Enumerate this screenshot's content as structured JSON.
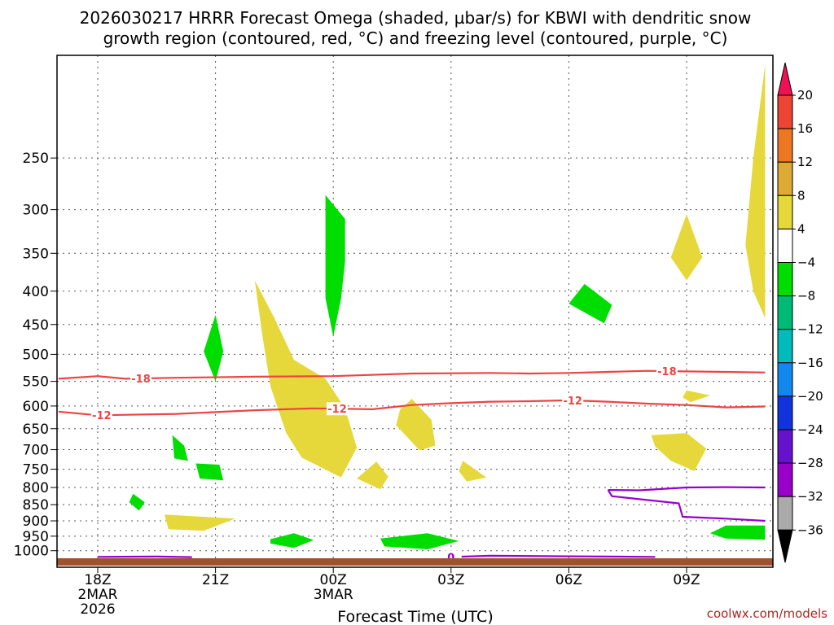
{
  "title_line1": "2026030217 HRRR Forecast Omega (shaded, µbar/s) for KBWI with dendritic snow",
  "title_line2": "growth region (contoured, red, °C) and freezing level (contoured, purple, °C)",
  "xlabel": "Forecast Time (UTC)",
  "credit": "coolwx.com/models",
  "colors": {
    "green": "#00dd00",
    "yellow": "#e6d83a",
    "red_contour": "#ee4444",
    "purple_contour": "#9900cc",
    "ground": "#a0522d"
  },
  "colorbar": {
    "labels": [
      "20",
      "16",
      "12",
      "8",
      "4",
      "−4",
      "−8",
      "−12",
      "−16",
      "−20",
      "−24",
      "−28",
      "−32",
      "−36"
    ],
    "colors": [
      "#ee1155",
      "#ee4433",
      "#ee7722",
      "#ddaa33",
      "#e6d83a",
      "#ffffff",
      "#00dd00",
      "#00bb77",
      "#00bbbb",
      "#1188ee",
      "#1133dd",
      "#6611cc",
      "#9900cc",
      "#aaaaaa"
    ]
  },
  "chart_data": {
    "type": "time-height cross section",
    "x_ticks": [
      {
        "label": "18Z",
        "sub": "2MAR",
        "sub2": "2026",
        "hour": 0
      },
      {
        "label": "21Z",
        "sub": "",
        "sub2": "",
        "hour": 3
      },
      {
        "label": "00Z",
        "sub": "3MAR",
        "sub2": "",
        "hour": 6
      },
      {
        "label": "03Z",
        "sub": "",
        "sub2": "",
        "hour": 9
      },
      {
        "label": "06Z",
        "sub": "",
        "sub2": "",
        "hour": 12
      },
      {
        "label": "09Z",
        "sub": "",
        "sub2": "",
        "hour": 15
      }
    ],
    "x_range_hours": [
      -1,
      17
    ],
    "y_ticks": [
      "250",
      "300",
      "350",
      "400",
      "450",
      "500",
      "550",
      "600",
      "650",
      "700",
      "750",
      "800",
      "850",
      "900",
      "950",
      "1000"
    ],
    "y_range_hpa": [
      175,
      1030
    ],
    "grid": true,
    "log_pressure_axis": true,
    "contours": [
      {
        "label": "-18",
        "color": "red",
        "points": [
          [
            -1,
            545
          ],
          [
            0,
            540
          ],
          [
            0.7,
            545
          ],
          [
            2,
            543
          ],
          [
            4,
            541
          ],
          [
            6,
            540
          ],
          [
            8,
            535
          ],
          [
            10,
            534
          ],
          [
            11,
            535
          ],
          [
            12,
            534
          ],
          [
            13,
            532
          ],
          [
            14,
            530
          ],
          [
            15,
            531
          ],
          [
            16,
            532
          ],
          [
            17,
            533
          ]
        ],
        "label_hours": [
          1.1,
          14.5
        ]
      },
      {
        "label": "-12",
        "color": "red",
        "points": [
          [
            -1,
            612
          ],
          [
            0,
            620
          ],
          [
            2,
            617
          ],
          [
            4,
            609
          ],
          [
            5.5,
            605
          ],
          [
            7,
            607
          ],
          [
            8,
            598
          ],
          [
            9,
            594
          ],
          [
            10,
            591
          ],
          [
            11,
            590
          ],
          [
            12,
            588
          ],
          [
            13,
            591
          ],
          [
            14,
            595
          ],
          [
            15,
            598
          ],
          [
            16,
            603
          ],
          [
            17,
            601
          ]
        ],
        "label_hours": [
          0.1,
          6.1,
          12.1
        ]
      },
      {
        "label": "0",
        "color": "purple",
        "points": [
          [
            13,
            807
          ],
          [
            13.8,
            808
          ],
          [
            15,
            800
          ],
          [
            16,
            799
          ],
          [
            17,
            800
          ]
        ],
        "label_hours": []
      },
      {
        "label": "0",
        "color": "purple",
        "points": [
          [
            13,
            807
          ],
          [
            13.1,
            825
          ],
          [
            14.8,
            846
          ],
          [
            14.9,
            887
          ],
          [
            16,
            893
          ],
          [
            17,
            900
          ]
        ],
        "label_hours": []
      },
      {
        "label": "0",
        "color": "purple",
        "points": [
          [
            0,
            1022
          ],
          [
            1.5,
            1021
          ],
          [
            2.4,
            1023
          ]
        ],
        "label_hours": []
      },
      {
        "label": "0",
        "color": "purple",
        "points": [
          [
            8.9,
            1023
          ],
          [
            10,
            1018
          ],
          [
            12,
            1020
          ],
          [
            14.2,
            1022
          ]
        ],
        "label_hours": [
          9
        ]
      }
    ],
    "omega_regions": [
      {
        "sign": "negative",
        "range": "-4 to -8",
        "points": [
          [
            5.8,
            285
          ],
          [
            6.3,
            310
          ],
          [
            6.3,
            360
          ],
          [
            6.2,
            410
          ],
          [
            6,
            470
          ],
          [
            5.8,
            410
          ],
          [
            5.8,
            360
          ],
          [
            5.8,
            310
          ]
        ]
      },
      {
        "sign": "negative",
        "range": "-4 to -8",
        "points": [
          [
            3,
            435
          ],
          [
            3.2,
            495
          ],
          [
            3,
            550
          ],
          [
            2.7,
            495
          ]
        ]
      },
      {
        "sign": "negative",
        "range": "-4 to -8",
        "points": [
          [
            12.4,
            390
          ],
          [
            13.1,
            420
          ],
          [
            12.9,
            448
          ],
          [
            12,
            418
          ]
        ]
      },
      {
        "sign": "negative",
        "range": "-4 to -8",
        "points": [
          [
            1.9,
            665
          ],
          [
            2.2,
            690
          ],
          [
            2.3,
            728
          ],
          [
            1.95,
            722
          ]
        ]
      },
      {
        "sign": "negative",
        "range": "-4 to -8",
        "points": [
          [
            2.5,
            735
          ],
          [
            3.1,
            738
          ],
          [
            3.2,
            780
          ],
          [
            2.6,
            775
          ]
        ]
      },
      {
        "sign": "negative",
        "range": "-4 to -8",
        "points": [
          [
            0.9,
            818
          ],
          [
            1.2,
            843
          ],
          [
            1.05,
            868
          ],
          [
            0.8,
            843
          ]
        ]
      },
      {
        "sign": "negative",
        "range": "-4 to -8",
        "points": [
          [
            4.4,
            960
          ],
          [
            5,
            940
          ],
          [
            5.5,
            963
          ],
          [
            5,
            990
          ],
          [
            4.4,
            975
          ]
        ]
      },
      {
        "sign": "negative",
        "range": "-4 to -8",
        "points": [
          [
            7.2,
            958
          ],
          [
            8.4,
            940
          ],
          [
            9.2,
            966
          ],
          [
            8.4,
            995
          ],
          [
            7.3,
            985
          ]
        ]
      },
      {
        "sign": "negative",
        "range": "-4 to -8",
        "points": [
          [
            16,
            915
          ],
          [
            17,
            915
          ],
          [
            17,
            962
          ],
          [
            16,
            958
          ],
          [
            15.6,
            940
          ]
        ]
      },
      {
        "sign": "positive",
        "range": "4 to 8",
        "points": [
          [
            4,
            385
          ],
          [
            4.5,
            440
          ],
          [
            5,
            510
          ],
          [
            5.8,
            545
          ],
          [
            6.3,
            605
          ],
          [
            6.6,
            695
          ],
          [
            6.2,
            772
          ],
          [
            5.2,
            720
          ],
          [
            4.8,
            660
          ],
          [
            4.4,
            560
          ],
          [
            4.2,
            470
          ]
        ]
      },
      {
        "sign": "positive",
        "range": "4 to 8",
        "points": [
          [
            1.7,
            880
          ],
          [
            3.5,
            893
          ],
          [
            2.7,
            932
          ],
          [
            1.8,
            927
          ]
        ]
      },
      {
        "sign": "positive",
        "range": "4 to 8",
        "points": [
          [
            8,
            585
          ],
          [
            8.5,
            630
          ],
          [
            8.6,
            690
          ],
          [
            8.2,
            702
          ],
          [
            7.6,
            642
          ],
          [
            7.7,
            608
          ]
        ]
      },
      {
        "sign": "positive",
        "range": "4 to 8",
        "points": [
          [
            7.1,
            730
          ],
          [
            7.4,
            770
          ],
          [
            7.2,
            805
          ],
          [
            6.6,
            775
          ]
        ]
      },
      {
        "sign": "positive",
        "range": "4 to 8",
        "points": [
          [
            9.3,
            728
          ],
          [
            9.9,
            772
          ],
          [
            9.4,
            783
          ],
          [
            9.2,
            755
          ]
        ]
      },
      {
        "sign": "positive",
        "range": "4 to 8",
        "points": [
          [
            14.1,
            665
          ],
          [
            15,
            660
          ],
          [
            15.5,
            697
          ],
          [
            15.2,
            755
          ],
          [
            14.6,
            728
          ],
          [
            14.2,
            692
          ]
        ]
      },
      {
        "sign": "positive",
        "range": "4 to 8",
        "points": [
          [
            15,
            305
          ],
          [
            15.4,
            355
          ],
          [
            15,
            385
          ],
          [
            14.6,
            355
          ]
        ]
      },
      {
        "sign": "positive",
        "range": "4 to 8",
        "points": [
          [
            15,
            568
          ],
          [
            15.6,
            578
          ],
          [
            15.1,
            592
          ],
          [
            14.9,
            582
          ]
        ]
      },
      {
        "sign": "positive",
        "range": "4 to 8",
        "points": [
          [
            17,
            180
          ],
          [
            17,
            440
          ],
          [
            16.7,
            400
          ],
          [
            16.5,
            340
          ],
          [
            16.7,
            250
          ]
        ]
      }
    ]
  }
}
